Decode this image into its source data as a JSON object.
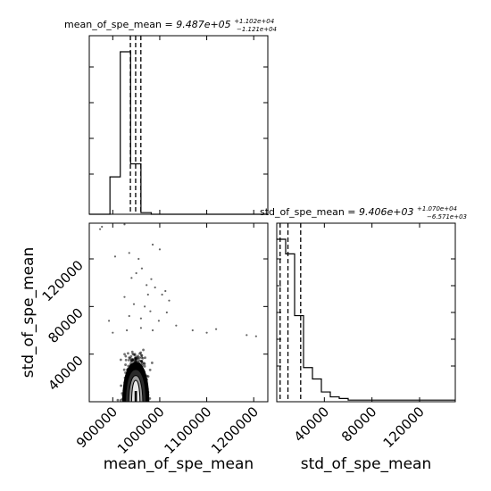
{
  "chart_data": {
    "type": "corner",
    "params": [
      "mean_of_spe_mean",
      "std_of_spe_mean"
    ],
    "titles": [
      {
        "name": "mean_of_spe_mean",
        "eq": " = ",
        "value": "9.487e+05",
        "plus": "+1.102e+04",
        "minus": "−1.121e+04"
      },
      {
        "name": "std_of_spe_mean",
        "eq": " = ",
        "value": "9.406e+03",
        "plus": "+1.070e+04",
        "minus": "−6.571e+03"
      }
    ],
    "xlabels": [
      "mean_of_spe_mean",
      "std_of_spe_mean"
    ],
    "ylabel": "std_of_spe_mean",
    "mean_range": [
      850000,
      1230000
    ],
    "std_range": [
      0,
      150000
    ],
    "mean_ticks": [
      {
        "value": 900000,
        "label": "900000"
      },
      {
        "value": 1000000,
        "label": "1000000"
      },
      {
        "value": 1100000,
        "label": "1100000"
      },
      {
        "value": 1200000,
        "label": "1200000"
      }
    ],
    "std_ticks": [
      {
        "value": 40000,
        "label": "40000"
      },
      {
        "value": 80000,
        "label": "80000"
      },
      {
        "value": 120000,
        "label": "120000"
      }
    ],
    "hist_mean": {
      "edges": [
        850000,
        872000,
        894000,
        916000,
        938000,
        960000,
        982000,
        1004000,
        1026000,
        1048000,
        1070000,
        1092000,
        1114000,
        1136000,
        1158000,
        1180000,
        1202000,
        1230000
      ],
      "counts": [
        0,
        0,
        0.23,
        1.0,
        0.31,
        0.01,
        0,
        0,
        0,
        0,
        0,
        0,
        0,
        0,
        0,
        0,
        0
      ],
      "quantiles": [
        937500,
        948700,
        959800
      ]
    },
    "hist_std": {
      "edges": [
        0,
        7500,
        15000,
        22500,
        30000,
        37500,
        45000,
        52500,
        60000,
        67500,
        75000,
        82500,
        90000,
        97500,
        105000,
        112500,
        120000,
        127500,
        135000,
        142500,
        150000
      ],
      "counts": [
        1.0,
        0.91,
        0.53,
        0.21,
        0.14,
        0.06,
        0.03,
        0.02,
        0.01,
        0.01,
        0.01,
        0.01,
        0.01,
        0.01,
        0.01,
        0.01,
        0.01,
        0.01,
        0.01,
        0.01
      ],
      "quantiles": [
        2835,
        9406,
        20106
      ]
    },
    "scatter_outliers": [
      [
        873000,
        145000
      ],
      [
        877000,
        147000
      ],
      [
        925000,
        149000
      ],
      [
        985000,
        132000
      ],
      [
        1000000,
        128000
      ],
      [
        955000,
        120000
      ],
      [
        962000,
        112000
      ],
      [
        940000,
        104000
      ],
      [
        972000,
        98000
      ],
      [
        990000,
        96000
      ],
      [
        1005000,
        90000
      ],
      [
        1012000,
        93000
      ],
      [
        925000,
        88000
      ],
      [
        945000,
        82000
      ],
      [
        968000,
        80000
      ],
      [
        980000,
        76000
      ],
      [
        960000,
        70000
      ],
      [
        935000,
        72000
      ],
      [
        998000,
        68000
      ],
      [
        1020000,
        85000
      ],
      [
        892000,
        68000
      ],
      [
        960000,
        62000
      ],
      [
        985000,
        60000
      ],
      [
        1070000,
        60000
      ],
      [
        1100000,
        58000
      ],
      [
        1185000,
        56000
      ],
      [
        1205000,
        55000
      ],
      [
        1120000,
        61000
      ],
      [
        950000,
        108000
      ],
      [
        982000,
        103000
      ],
      [
        905000,
        122000
      ],
      [
        935000,
        125000
      ],
      [
        975000,
        90000
      ],
      [
        1015000,
        75000
      ],
      [
        930000,
        60000
      ],
      [
        900000,
        58000
      ],
      [
        1035000,
        64000
      ]
    ],
    "contour": {
      "center": [
        949000,
        9000
      ],
      "levels": [
        {
          "dmean": 28000,
          "dstd_up": 24000,
          "fill": "#000000"
        },
        {
          "dmean": 22000,
          "dstd_up": 18000,
          "fill": "#2a2a2a"
        },
        {
          "dmean": 15000,
          "dstd_up": 13000,
          "fill": "#9a9a9a"
        },
        {
          "dmean": 9000,
          "dstd_up": 9000,
          "fill": "#e8e8e8"
        }
      ]
    }
  }
}
